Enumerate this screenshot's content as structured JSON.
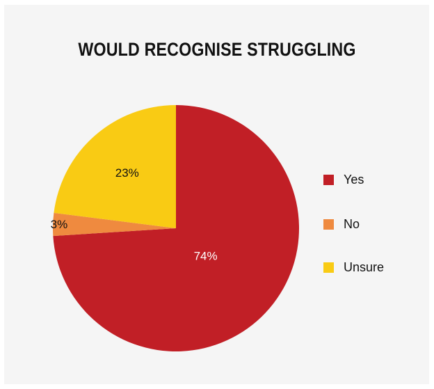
{
  "chart_data": {
    "type": "pie",
    "title": "WOULD RECOGNISE STRUGGLING",
    "slices": [
      {
        "name": "Yes",
        "value": 74,
        "label": "74%",
        "color": "#c11f26",
        "label_color": "#ffffff"
      },
      {
        "name": "No",
        "value": 3,
        "label": "3%",
        "color": "#ef8a3f",
        "label_color": "#111111"
      },
      {
        "name": "Unsure",
        "value": 23,
        "label": "23%",
        "color": "#f9cb14",
        "label_color": "#111111"
      }
    ],
    "legend_position": "right"
  },
  "colors": {
    "background": "#f5f5f5",
    "text": "#111111"
  }
}
